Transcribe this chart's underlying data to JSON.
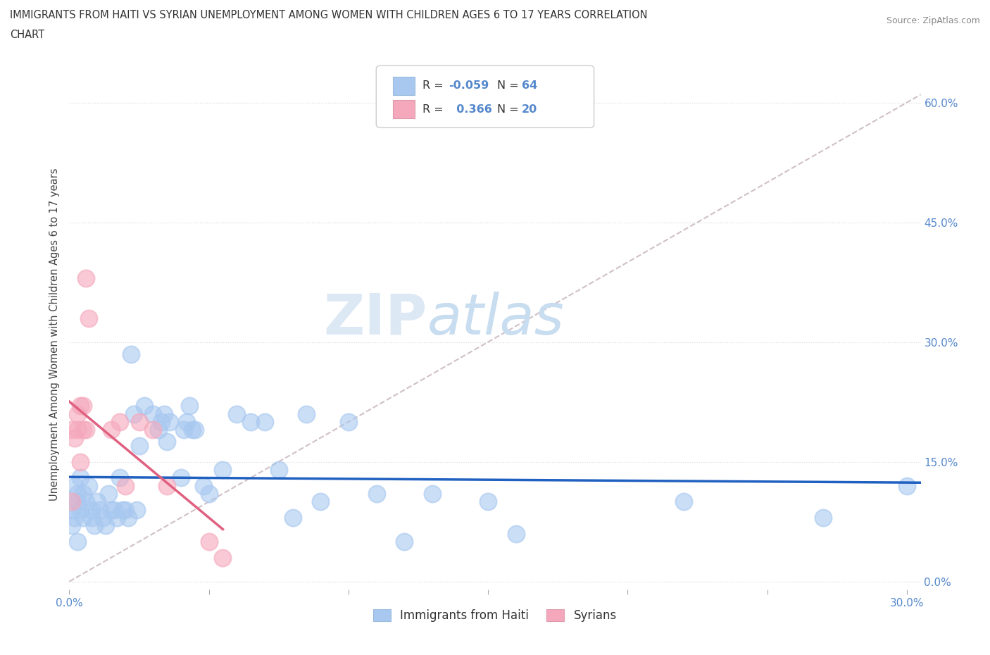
{
  "title_line1": "IMMIGRANTS FROM HAITI VS SYRIAN UNEMPLOYMENT AMONG WOMEN WITH CHILDREN AGES 6 TO 17 YEARS CORRELATION",
  "title_line2": "CHART",
  "source": "Source: ZipAtlas.com",
  "ylabel_label": "Unemployment Among Women with Children Ages 6 to 17 years",
  "legend_label1": "Immigrants from Haiti",
  "legend_label2": "Syrians",
  "color_haiti": "#a8c8f0",
  "color_syria": "#f5a8bc",
  "color_haiti_line": "#2060c0",
  "color_syria_line": "#e06080",
  "color_diagonal": "#d0c0c8",
  "watermark_zip": "ZIP",
  "watermark_atlas": "atlas",
  "background_color": "#ffffff",
  "grid_color": "#dddddd",
  "tick_color": "#5588cc",
  "xlim": [
    0.0,
    0.305
  ],
  "ylim": [
    -0.01,
    0.63
  ],
  "yticks": [
    0.0,
    0.15,
    0.3,
    0.45,
    0.6
  ],
  "ytick_labels": [
    "0.0%",
    "15.0%",
    "30.0%",
    "45.0%",
    "60.0%"
  ],
  "xticks": [
    0.0,
    0.05,
    0.1,
    0.15,
    0.2,
    0.25,
    0.3
  ],
  "xtick_labels": [
    "0.0%",
    "",
    "",
    "",
    "",
    "",
    "30.0%"
  ],
  "haiti_x": [
    0.001,
    0.001,
    0.002,
    0.002,
    0.003,
    0.003,
    0.003,
    0.004,
    0.004,
    0.005,
    0.005,
    0.006,
    0.007,
    0.008,
    0.008,
    0.009,
    0.01,
    0.011,
    0.012,
    0.013,
    0.014,
    0.015,
    0.016,
    0.017,
    0.018,
    0.019,
    0.02,
    0.021,
    0.022,
    0.023,
    0.024,
    0.025,
    0.027,
    0.03,
    0.032,
    0.033,
    0.034,
    0.035,
    0.036,
    0.04,
    0.041,
    0.042,
    0.043,
    0.044,
    0.045,
    0.048,
    0.05,
    0.055,
    0.06,
    0.065,
    0.07,
    0.075,
    0.08,
    0.085,
    0.09,
    0.1,
    0.11,
    0.12,
    0.13,
    0.15,
    0.16,
    0.22,
    0.27,
    0.3
  ],
  "haiti_y": [
    0.09,
    0.07,
    0.12,
    0.08,
    0.11,
    0.1,
    0.05,
    0.13,
    0.09,
    0.08,
    0.11,
    0.1,
    0.12,
    0.09,
    0.08,
    0.07,
    0.1,
    0.09,
    0.08,
    0.07,
    0.11,
    0.09,
    0.09,
    0.08,
    0.13,
    0.09,
    0.09,
    0.08,
    0.285,
    0.21,
    0.09,
    0.17,
    0.22,
    0.21,
    0.19,
    0.2,
    0.21,
    0.175,
    0.2,
    0.13,
    0.19,
    0.2,
    0.22,
    0.19,
    0.19,
    0.12,
    0.11,
    0.14,
    0.21,
    0.2,
    0.2,
    0.14,
    0.08,
    0.21,
    0.1,
    0.2,
    0.11,
    0.05,
    0.11,
    0.1,
    0.06,
    0.1,
    0.08,
    0.12
  ],
  "syria_x": [
    0.001,
    0.001,
    0.002,
    0.003,
    0.003,
    0.004,
    0.004,
    0.005,
    0.005,
    0.006,
    0.006,
    0.007,
    0.015,
    0.018,
    0.02,
    0.025,
    0.03,
    0.035,
    0.05,
    0.055
  ],
  "syria_y": [
    0.1,
    0.19,
    0.18,
    0.19,
    0.21,
    0.15,
    0.22,
    0.19,
    0.22,
    0.38,
    0.19,
    0.33,
    0.19,
    0.2,
    0.12,
    0.2,
    0.19,
    0.12,
    0.05,
    0.03
  ]
}
